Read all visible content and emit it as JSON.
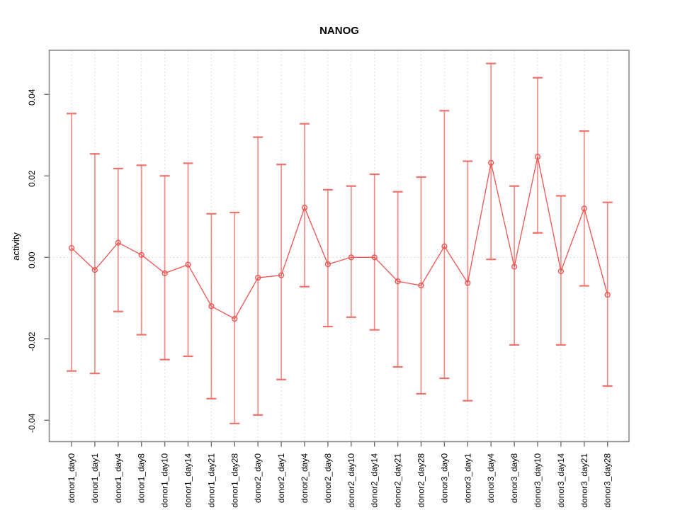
{
  "title": "NANOG",
  "ylabel": "activity",
  "chart_data": {
    "type": "line",
    "subtype": "points-with-error-bars",
    "title": "NANOG",
    "xlabel": "",
    "ylabel": "activity",
    "legend": "none",
    "grid": "vertical-dashed-plus-zero-line",
    "categories": [
      "donor1_day0",
      "donor1_day1",
      "donor1_day4",
      "donor1_day8",
      "donor1_day10",
      "donor1_day14",
      "donor1_day21",
      "donor1_day28",
      "donor2_day0",
      "donor2_day1",
      "donor2_day4",
      "donor2_day8",
      "donor2_day10",
      "donor2_day14",
      "donor2_day21",
      "donor2_day28",
      "donor3_day0",
      "donor3_day1",
      "donor3_day4",
      "donor3_day8",
      "donor3_day10",
      "donor3_day14",
      "donor3_day21",
      "donor3_day28"
    ],
    "series": [
      {
        "name": "activity",
        "values": [
          0.0023,
          -0.0031,
          0.0036,
          0.0006,
          -0.0039,
          -0.0018,
          -0.012,
          -0.0151,
          -0.005,
          -0.0044,
          0.0122,
          -0.0017,
          0.0,
          0.0,
          -0.0059,
          -0.0069,
          0.0027,
          -0.0063,
          0.0232,
          -0.0023,
          0.0247,
          -0.0034,
          0.012,
          -0.0092
        ],
        "upper": [
          0.0353,
          0.0254,
          0.0218,
          0.0226,
          0.02,
          0.0231,
          0.0107,
          0.011,
          0.0295,
          0.0228,
          0.0328,
          0.0166,
          0.0175,
          0.0204,
          0.0161,
          0.0197,
          0.036,
          0.0236,
          0.0476,
          0.0175,
          0.0441,
          0.0151,
          0.031,
          0.0135
        ],
        "lower": [
          -0.0279,
          -0.0285,
          -0.0133,
          -0.019,
          -0.0251,
          -0.0243,
          -0.0347,
          -0.0408,
          -0.0387,
          -0.03,
          -0.0072,
          -0.017,
          -0.0147,
          -0.0178,
          -0.0269,
          -0.0335,
          -0.0297,
          -0.0352,
          -0.0005,
          -0.0215,
          0.006,
          -0.0215,
          -0.007,
          -0.0316
        ]
      }
    ],
    "yticks": [
      -0.04,
      -0.02,
      0.0,
      0.02,
      0.04
    ],
    "ytick_labels": [
      "-0.04",
      "-0.02",
      "0.00",
      "0.02",
      "0.04"
    ],
    "ylim": [
      -0.0455,
      0.051
    ],
    "colors": {
      "point": "#ef5350",
      "line": "#ef5350",
      "error_bar": "#f1807a",
      "error_cap": "#ef6a64",
      "frame": "#8a8a8a",
      "tick": "#6e6e6e",
      "grid": "#dcdcdc",
      "zero_line": "#d4d4d4",
      "background": "#ffffff"
    }
  }
}
